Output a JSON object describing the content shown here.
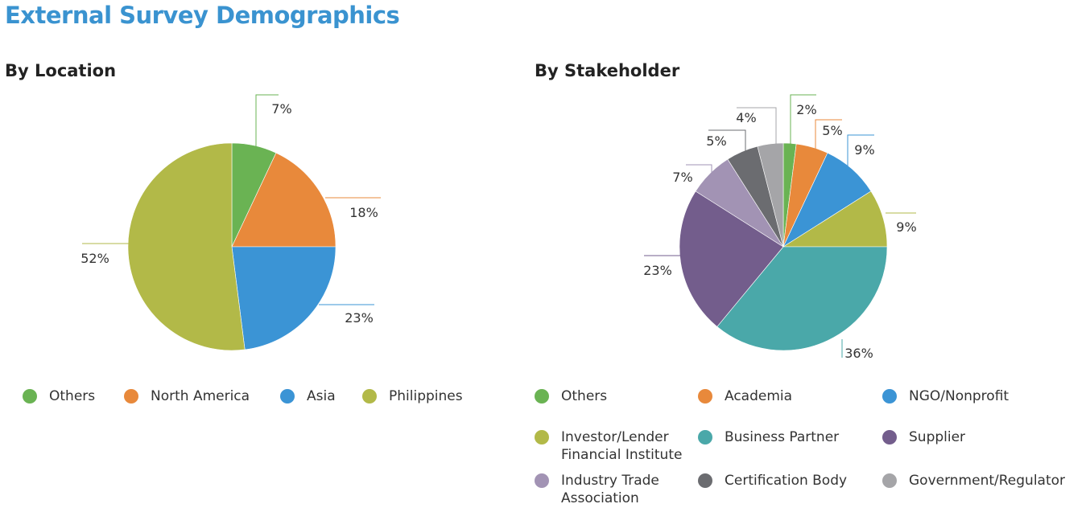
{
  "header": {
    "title": "External Survey Demographics"
  },
  "chart_data": [
    {
      "type": "pie",
      "title": "By Location",
      "unit": "%",
      "categories": [
        "Others",
        "North America",
        "Asia",
        "Philippines"
      ],
      "values": [
        7,
        18,
        23,
        52
      ],
      "value_labels": [
        "7%",
        "18%",
        "23%",
        "52%"
      ],
      "colors": [
        "#6ab353",
        "#e8893b",
        "#3b94d5",
        "#b2b948"
      ],
      "legend_position": "bottom"
    },
    {
      "type": "pie",
      "title": "By Stakeholder",
      "unit": "%",
      "categories": [
        "Others",
        "Academia",
        "NGO/Nonprofit",
        "Investor/Lender Financial Institute",
        "Business Partner",
        "Supplier",
        "Industry Trade Association",
        "Certification Body",
        "Government/Regulator"
      ],
      "values": [
        2,
        5,
        9,
        9,
        36,
        23,
        7,
        5,
        4
      ],
      "value_labels": [
        "2%",
        "5%",
        "9%",
        "9%",
        "36%",
        "23%",
        "7%",
        "5%",
        "4%"
      ],
      "colors": [
        "#6ab353",
        "#e8893b",
        "#3b94d5",
        "#b2b948",
        "#4aa8a9",
        "#735d8c",
        "#a293b4",
        "#6b6c70",
        "#a5a5a8"
      ],
      "legend_position": "bottom",
      "legend_lines": [
        [
          "Others"
        ],
        [
          "Academia"
        ],
        [
          "NGO/Nonprofit"
        ],
        [
          "Investor/Lender",
          "Financial Institute"
        ],
        [
          "Business Partner"
        ],
        [
          "Supplier"
        ],
        [
          "Industry Trade",
          "Association"
        ],
        [
          "Certification Body"
        ],
        [
          "Government/Regulator"
        ]
      ]
    }
  ]
}
